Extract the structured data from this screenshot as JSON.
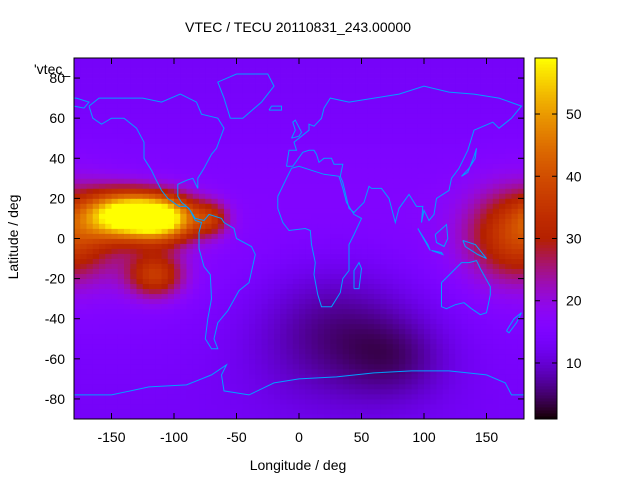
{
  "chart_data": {
    "type": "heatmap",
    "title": "VTEC / TECU 20110831_243.00000",
    "key_label": "'vtec_",
    "xlabel": "Longitude / deg",
    "ylabel": "Latitude / deg",
    "xlim": [
      -180,
      180
    ],
    "ylim": [
      -90,
      90
    ],
    "x_ticks": [
      -150,
      -100,
      -50,
      0,
      50,
      100,
      150
    ],
    "y_ticks": [
      -80,
      -60,
      -40,
      -20,
      0,
      20,
      40,
      60,
      80
    ],
    "x_tick_labels": [
      "-150",
      "-100",
      "-50",
      "0",
      "50",
      "100",
      "150"
    ],
    "y_tick_labels": [
      "-80",
      "-60",
      "-40",
      "-20",
      "0",
      "20",
      "40",
      "60",
      "80"
    ],
    "colorbar": {
      "range": [
        1,
        59
      ],
      "ticks": [
        10,
        20,
        30,
        40,
        50
      ],
      "tick_labels": [
        "10",
        "20",
        "30",
        "40",
        "50"
      ],
      "palette": "black-purple-red-orange-yellow"
    },
    "grid": false,
    "overlay": "coastlines",
    "coastline_color": "#00a0ff",
    "features": [
      {
        "lon": -140,
        "lat": 12,
        "sigma_lon": 22,
        "sigma_lat": 8,
        "peak": 40
      },
      {
        "lon": -108,
        "lat": 10,
        "sigma_lon": 20,
        "sigma_lat": 8,
        "peak": 40
      },
      {
        "lon": -115,
        "lat": -18,
        "sigma_lon": 16,
        "sigma_lat": 8,
        "peak": 20
      },
      {
        "lon": -70,
        "lat": 10,
        "sigma_lon": 10,
        "sigma_lat": 6,
        "peak": 14
      },
      {
        "lon": 175,
        "lat": 2,
        "sigma_lon": 28,
        "sigma_lat": 16,
        "peak": 22
      },
      {
        "lon": 30,
        "lat": -45,
        "sigma_lon": 50,
        "sigma_lat": 25,
        "peak": -9
      },
      {
        "lon": 80,
        "lat": -60,
        "sigma_lon": 30,
        "sigma_lat": 15,
        "peak": -5
      }
    ],
    "background_level": 15
  }
}
